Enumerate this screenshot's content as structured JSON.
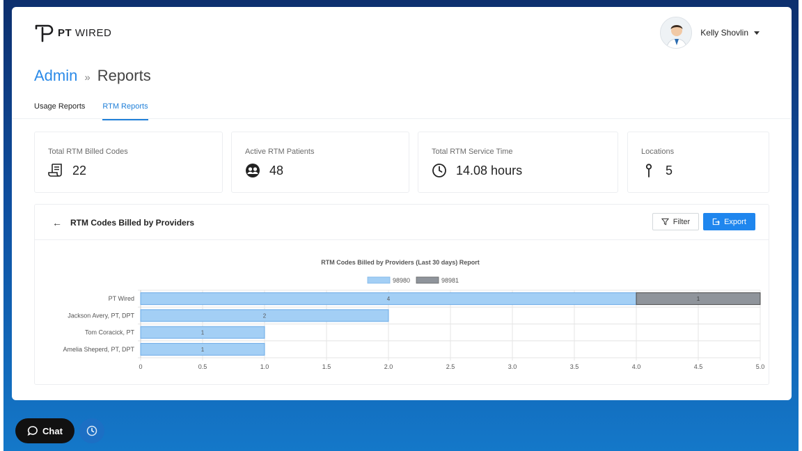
{
  "app": {
    "logo_bold": "PT",
    "logo_light": " WIRED"
  },
  "user": {
    "name": "Kelly Shovlin"
  },
  "breadcrumb": {
    "root": "Admin",
    "separator": "»",
    "current": "Reports"
  },
  "tabs": [
    {
      "label": "Usage Reports",
      "active": false
    },
    {
      "label": "RTM Reports",
      "active": true
    }
  ],
  "stats": [
    {
      "label": "Total RTM Billed Codes",
      "value": "22",
      "icon": "receipt-icon"
    },
    {
      "label": "Active RTM Patients",
      "value": "48",
      "icon": "patients-icon"
    },
    {
      "label": "Total RTM Service Time",
      "value": "14.08 hours",
      "icon": "clock-icon"
    },
    {
      "label": "Locations",
      "value": "5",
      "icon": "location-pin-icon"
    }
  ],
  "panel": {
    "title": "RTM Codes Billed by Providers",
    "filter_label": "Filter",
    "export_label": "Export"
  },
  "chart_data": {
    "type": "bar",
    "orientation": "horizontal",
    "stacked": true,
    "title": "RTM Codes Billed by Providers (Last 30 days) Report",
    "categories": [
      "PT Wired",
      "Jackson Avery, PT, DPT",
      "Tom Coracick, PT",
      "Amelia Sheperd, PT, DPT"
    ],
    "series": [
      {
        "name": "98980",
        "values": [
          4,
          2,
          1,
          1
        ],
        "color": "#a3cff5"
      },
      {
        "name": "98981",
        "values": [
          1,
          0,
          0,
          0
        ],
        "color": "#8f949b"
      }
    ],
    "xlim": [
      0,
      5
    ],
    "xticks": [
      "0",
      "0.5",
      "1.0",
      "1.5",
      "2.0",
      "2.5",
      "3.0",
      "3.5",
      "4.0",
      "4.5",
      "5.0"
    ],
    "grid": true,
    "legend_position": "top"
  },
  "widgets": {
    "chat_label": "Chat"
  }
}
